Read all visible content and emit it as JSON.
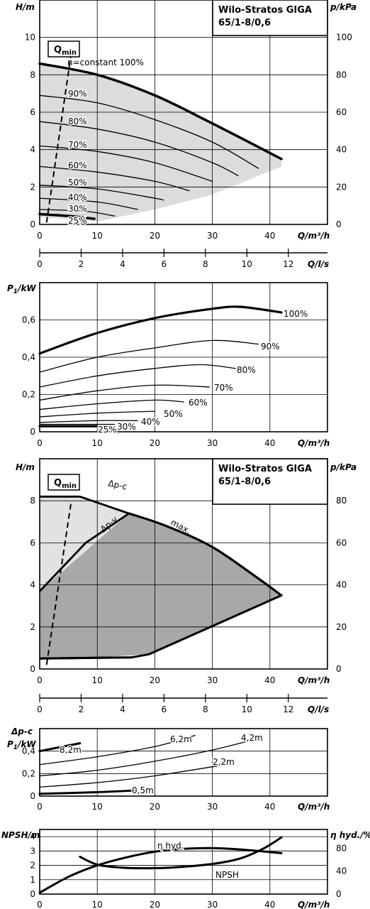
{
  "chart_data": [
    {
      "id": "c1",
      "type": "line",
      "title_lines": [
        "Wilo-Stratos GIGA",
        "65/1-8/0,6"
      ],
      "xlabel": "Q/m³/h",
      "ylabel": "H/m",
      "y2label": "p/kPa",
      "xlim": [
        0,
        50
      ],
      "ylim": [
        0,
        12
      ],
      "xticks": [
        "0",
        "10",
        "20",
        "30",
        "40"
      ],
      "yticks": [
        "0",
        "2",
        "4",
        "6",
        "8",
        "10"
      ],
      "y2ticks": [
        "0",
        "20",
        "40",
        "60",
        "80",
        "100"
      ],
      "qmin_label": "Q",
      "qmin_sub": "min",
      "series": [
        {
          "name": "n=constant 100%",
          "x": [
            0,
            10,
            20,
            30,
            42
          ],
          "y": [
            8.6,
            8.0,
            6.9,
            5.4,
            3.5
          ]
        },
        {
          "name": "90%",
          "x": [
            0,
            10,
            20,
            30,
            38
          ],
          "y": [
            6.9,
            6.5,
            5.6,
            4.4,
            3.0
          ]
        },
        {
          "name": "80%",
          "x": [
            0,
            10,
            20,
            30,
            34.5
          ],
          "y": [
            5.5,
            5.1,
            4.4,
            3.3,
            2.6
          ]
        },
        {
          "name": "70%",
          "x": [
            0,
            10,
            20,
            30
          ],
          "y": [
            4.2,
            3.9,
            3.3,
            2.3
          ]
        },
        {
          "name": "60%",
          "x": [
            0,
            10,
            20,
            26
          ],
          "y": [
            3.1,
            2.8,
            2.3,
            1.8
          ]
        },
        {
          "name": "50%",
          "x": [
            0,
            10,
            20,
            21.5
          ],
          "y": [
            2.1,
            1.9,
            1.4,
            1.3
          ]
        },
        {
          "name": "40%",
          "x": [
            0,
            10,
            17
          ],
          "y": [
            1.4,
            1.2,
            0.8
          ]
        },
        {
          "name": "30%",
          "x": [
            0,
            8,
            13
          ],
          "y": [
            0.8,
            0.7,
            0.45
          ]
        },
        {
          "name": "25%",
          "x": [
            0,
            5,
            9.5
          ],
          "y": [
            0.55,
            0.45,
            0.3
          ]
        }
      ]
    },
    {
      "id": "cQ1",
      "type": "axis",
      "xlabel": "Q/l/s",
      "xticks": [
        "0",
        "2",
        "4",
        "6",
        "8",
        "10",
        "12"
      ]
    },
    {
      "id": "c2",
      "type": "line",
      "xlabel": "Q/m³/h",
      "ylabel": "P1/kW",
      "xlim": [
        0,
        50
      ],
      "ylim": [
        0,
        0.8
      ],
      "xticks": [
        "0",
        "10",
        "20",
        "30",
        "40"
      ],
      "yticks": [
        "0",
        "0,2",
        "0,4",
        "0,6"
      ],
      "series": [
        {
          "name": "100%",
          "x": [
            0,
            10,
            20,
            30,
            35,
            42
          ],
          "y": [
            0.42,
            0.53,
            0.61,
            0.66,
            0.67,
            0.64
          ]
        },
        {
          "name": "90%",
          "x": [
            0,
            10,
            20,
            30,
            38
          ],
          "y": [
            0.32,
            0.4,
            0.45,
            0.49,
            0.47
          ]
        },
        {
          "name": "80%",
          "x": [
            0,
            10,
            20,
            28,
            34
          ],
          "y": [
            0.24,
            0.3,
            0.34,
            0.36,
            0.34
          ]
        },
        {
          "name": "70%",
          "x": [
            0,
            10,
            20,
            29.5
          ],
          "y": [
            0.17,
            0.22,
            0.25,
            0.24
          ]
        },
        {
          "name": "60%",
          "x": [
            0,
            10,
            20,
            25
          ],
          "y": [
            0.12,
            0.15,
            0.17,
            0.16
          ]
        },
        {
          "name": "50%",
          "x": [
            0,
            10,
            20
          ],
          "y": [
            0.08,
            0.1,
            0.11
          ]
        },
        {
          "name": "40%",
          "x": [
            0,
            10,
            17
          ],
          "y": [
            0.05,
            0.06,
            0.06
          ]
        },
        {
          "name": "30%",
          "x": [
            0,
            8,
            13
          ],
          "y": [
            0.04,
            0.04,
            0.04
          ]
        },
        {
          "name": "25%",
          "x": [
            0,
            5,
            10
          ],
          "y": [
            0.03,
            0.03,
            0.03
          ]
        }
      ]
    },
    {
      "id": "c3",
      "type": "area",
      "title_lines": [
        "Wilo-Stratos GIGA",
        "65/1-8/0,6"
      ],
      "xlabel": "Q/m³/h",
      "ylabel": "H/m",
      "y2label": "p/kPa",
      "xlim": [
        0,
        50
      ],
      "ylim": [
        0,
        10
      ],
      "xticks": [
        "0",
        "10",
        "20",
        "30",
        "40"
      ],
      "yticks": [
        "0",
        "2",
        "4",
        "6",
        "8"
      ],
      "y2ticks": [
        "0",
        "20",
        "40",
        "60",
        "80"
      ],
      "qmin_label": "Q",
      "qmin_sub": "min",
      "labels": {
        "dpc": "Δp-c",
        "dpv": "Δp-v",
        "max": "max."
      },
      "series": [
        {
          "name": "Δp-c",
          "x": [
            0,
            7,
            10,
            15.5
          ],
          "y": [
            8.2,
            8.2,
            7.9,
            7.4
          ]
        },
        {
          "name": "Δp-v",
          "x": [
            0,
            8,
            15.5
          ],
          "y": [
            3.7,
            6.0,
            7.4
          ]
        },
        {
          "name": "max.",
          "x": [
            15.5,
            22,
            30,
            38,
            42
          ],
          "y": [
            7.4,
            6.8,
            5.8,
            4.3,
            3.5
          ]
        },
        {
          "name": "min",
          "x": [
            0,
            10,
            19,
            42
          ],
          "y": [
            0.5,
            0.55,
            0.65,
            3.5
          ]
        }
      ]
    },
    {
      "id": "cQ2",
      "type": "axis",
      "xlabel": "Q/l/s",
      "xticks": [
        "0",
        "2",
        "4",
        "6",
        "8",
        "10",
        "12"
      ]
    },
    {
      "id": "c4",
      "type": "line",
      "xlabel": "Q/m³/h",
      "ylabel_lines": [
        "Δp-c",
        "P1/kW"
      ],
      "xlim": [
        0,
        50
      ],
      "ylim": [
        0,
        0.6
      ],
      "xticks": [
        "0",
        "10",
        "20",
        "30",
        "40"
      ],
      "yticks": [
        "0",
        "0,2",
        "0,4"
      ],
      "series": [
        {
          "name": "8,2m",
          "x": [
            0,
            7
          ],
          "y": [
            0.4,
            0.47
          ]
        },
        {
          "name": "6,2m",
          "x": [
            0,
            10,
            20,
            27
          ],
          "y": [
            0.28,
            0.35,
            0.44,
            0.54
          ]
        },
        {
          "name": "4,2m",
          "x": [
            0,
            10,
            20,
            30,
            38.5
          ],
          "y": [
            0.18,
            0.23,
            0.31,
            0.41,
            0.52
          ]
        },
        {
          "name": "2,2m",
          "x": [
            0,
            10,
            20,
            33.5
          ],
          "y": [
            0.08,
            0.12,
            0.18,
            0.29
          ]
        },
        {
          "name": "0,5m",
          "x": [
            0,
            10,
            16.5
          ],
          "y": [
            0.02,
            0.035,
            0.05
          ]
        }
      ]
    },
    {
      "id": "c5",
      "type": "line",
      "xlabel": "Q/m³/h",
      "ylabel": "NPSH/m",
      "y2label": "η hyd./%",
      "xlim": [
        0,
        50
      ],
      "ylim": [
        0,
        4.5
      ],
      "xticks": [
        "0",
        "10",
        "20",
        "30",
        "40"
      ],
      "yticks": [
        "0",
        "1",
        "2",
        "3",
        "4"
      ],
      "y2ticks": [
        "0",
        "40",
        "80"
      ],
      "series": [
        {
          "name": "η hyd.",
          "x": [
            0,
            5,
            10,
            15,
            20,
            25,
            30,
            35,
            42
          ],
          "y": [
            0.1,
            1.2,
            2.0,
            2.55,
            2.95,
            3.15,
            3.2,
            3.1,
            2.85
          ]
        },
        {
          "name": "NPSH",
          "x": [
            7,
            10,
            14,
            18,
            23,
            30,
            35,
            39,
            42
          ],
          "y": [
            2.6,
            2.05,
            1.85,
            1.8,
            1.85,
            2.1,
            2.5,
            3.2,
            3.95
          ]
        }
      ]
    }
  ],
  "labels": {
    "c1_curve_labels": [
      "n=constant 100%",
      "90%",
      "80%",
      "70%",
      "60%",
      "50%",
      "40%",
      "30%",
      "25%"
    ],
    "c2_curve_labels": [
      "100%",
      "90%",
      "80%",
      "70%",
      "60%",
      "50%",
      "40%",
      "30%",
      "25%"
    ]
  }
}
